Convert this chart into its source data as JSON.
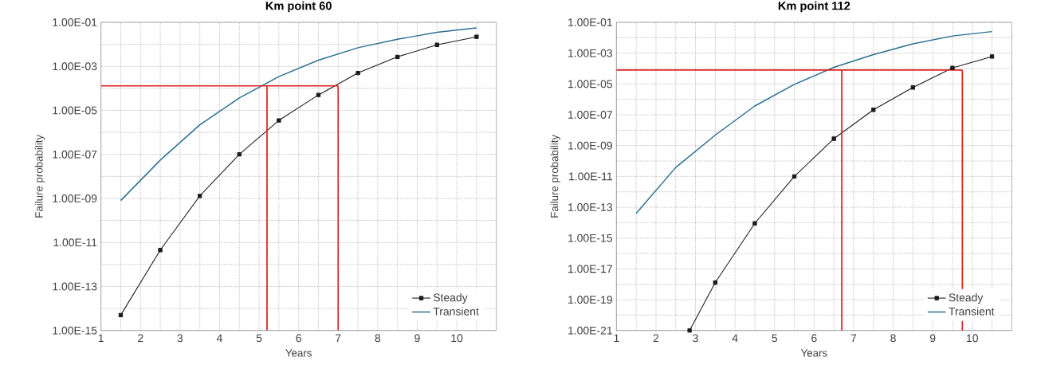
{
  "chart_data": [
    {
      "type": "line",
      "title": "Km point 60",
      "xlabel": "Years",
      "ylabel": "Failure probability",
      "log": "y",
      "grid": true,
      "legend": "bottom right",
      "x": [
        1.5,
        2.5,
        3.5,
        4.5,
        5.5,
        6.5,
        7.5,
        8.5,
        9.5,
        10.5
      ],
      "xlim": [
        1,
        11
      ],
      "xticks": [
        1,
        {
          "value": 1.5,
          "label": null
        },
        2,
        {
          "value": 2.5,
          "label": null
        },
        3,
        {
          "value": 3.5,
          "label": null
        },
        4,
        {
          "value": 4.5,
          "label": null
        },
        5,
        {
          "value": 5.5,
          "label": null
        },
        6,
        {
          "value": 6.5,
          "label": null
        },
        7,
        {
          "value": 7.5,
          "label": null
        },
        8,
        {
          "value": 8.5,
          "label": null
        },
        9,
        {
          "value": 9.5,
          "label": null
        },
        10,
        {
          "value": 10.5,
          "label": null
        }
      ],
      "ylim": [
        1e-15,
        0.1
      ],
      "yticks": [
        {
          "value": 1e-15,
          "label": "1.00E-15"
        },
        {
          "value": 1e-14,
          "label": null
        },
        {
          "value": 1e-13,
          "label": "1.00E-13"
        },
        {
          "value": 1e-12,
          "label": null
        },
        {
          "value": 1e-11,
          "label": "1.00E-11"
        },
        {
          "value": 1e-10,
          "label": null
        },
        {
          "value": 1e-09,
          "label": "1.00E-09"
        },
        {
          "value": 1e-08,
          "label": null
        },
        {
          "value": 1e-07,
          "label": "1.00E-07"
        },
        {
          "value": 1e-06,
          "label": null
        },
        {
          "value": 1e-05,
          "label": "1.00E-05"
        },
        {
          "value": 0.0001,
          "label": null
        },
        {
          "value": 0.001,
          "label": "1.00E-03"
        },
        {
          "value": 0.01,
          "label": null
        },
        {
          "value": 0.1,
          "label": "1.00E-01"
        }
      ],
      "series": [
        {
          "name": "Steady",
          "color": "#1a1a1a",
          "marker": "square",
          "values": [
            5e-15,
            4.5e-12,
            1.3e-09,
            1e-07,
            3.5e-06,
            5e-05,
            0.0005,
            0.0027,
            0.0095,
            0.022
          ]
        },
        {
          "name": "Transient",
          "color": "#2a6f8f",
          "marker": "none",
          "values": [
            8e-10,
            5.5e-08,
            2.2e-06,
            3.7e-05,
            0.00034,
            0.0019,
            0.007,
            0.017,
            0.035,
            0.056
          ]
        }
      ],
      "ref_lines": [
        {
          "axis": "y",
          "value": 0.00013,
          "color": "#e02020"
        },
        {
          "axis": "x",
          "value": 5.2,
          "color": "#e02020"
        },
        {
          "axis": "x",
          "value": 7,
          "color": "#e02020"
        }
      ]
    },
    {
      "type": "line",
      "title": "Km point 112",
      "xlabel": "Years",
      "ylabel": "Failure probability",
      "log": "y",
      "grid": true,
      "legend": "bottom right",
      "x": [
        1.5,
        2.5,
        3.5,
        4.5,
        5.5,
        6.5,
        7.5,
        8.5,
        9.5,
        10.5
      ],
      "xlim": [
        1,
        11
      ],
      "xticks": [
        1,
        {
          "value": 1.5,
          "label": null
        },
        2,
        {
          "value": 2.5,
          "label": null
        },
        3,
        {
          "value": 3.5,
          "label": null
        },
        4,
        {
          "value": 4.5,
          "label": null
        },
        5,
        {
          "value": 5.5,
          "label": null
        },
        6,
        {
          "value": 6.5,
          "label": null
        },
        7,
        {
          "value": 7.5,
          "label": null
        },
        8,
        {
          "value": 8.5,
          "label": null
        },
        9,
        {
          "value": 9.5,
          "label": null
        },
        10,
        {
          "value": 10.5,
          "label": null
        }
      ],
      "ylim": [
        1e-21,
        0.1
      ],
      "yticks": [
        {
          "value": 1e-21,
          "label": "1.00E-21"
        },
        {
          "value": 1e-20,
          "label": null
        },
        {
          "value": 1e-19,
          "label": "1.00E-19"
        },
        {
          "value": 1e-18,
          "label": null
        },
        {
          "value": 1e-17,
          "label": "1.00E-17"
        },
        {
          "value": 1e-16,
          "label": null
        },
        {
          "value": 1e-15,
          "label": "1.00E-15"
        },
        {
          "value": 1e-14,
          "label": null
        },
        {
          "value": 1e-13,
          "label": "1.00E-13"
        },
        {
          "value": 1e-12,
          "label": null
        },
        {
          "value": 1e-11,
          "label": "1.00E-11"
        },
        {
          "value": 1e-10,
          "label": null
        },
        {
          "value": 1e-09,
          "label": "1.00E-09"
        },
        {
          "value": 1e-08,
          "label": null
        },
        {
          "value": 1e-07,
          "label": "1.00E-07"
        },
        {
          "value": 1e-06,
          "label": null
        },
        {
          "value": 1e-05,
          "label": "1.00E-05"
        },
        {
          "value": 0.0001,
          "label": null
        },
        {
          "value": 0.001,
          "label": "1.00E-03"
        },
        {
          "value": 0.01,
          "label": null
        },
        {
          "value": 0.1,
          "label": "1.00E-01"
        }
      ],
      "series": [
        {
          "name": "Steady",
          "color": "#1a1a1a",
          "marker": "square",
          "x": [
            2.85,
            3.5,
            4.5,
            5.5,
            6.5,
            7.5,
            8.5,
            9.5,
            10.5
          ],
          "values": [
            1e-21,
            1.3e-18,
            9e-15,
            1e-11,
            2.8e-09,
            2.1e-07,
            5.9e-06,
            0.00011,
            0.0006
          ]
        },
        {
          "name": "Transient",
          "color": "#2a6f8f",
          "marker": "none",
          "values": [
            4e-14,
            3.8e-11,
            4.8e-09,
            3.7e-07,
            9.3e-06,
            0.00012,
            0.0008,
            0.004,
            0.013,
            0.025
          ]
        }
      ],
      "ref_lines": [
        {
          "axis": "y",
          "value": 8e-05,
          "color": "#e02020"
        },
        {
          "axis": "x",
          "value": 6.7,
          "color": "#e02020"
        },
        {
          "axis": "x",
          "value": 9.75,
          "color": "#e02020"
        }
      ]
    }
  ]
}
